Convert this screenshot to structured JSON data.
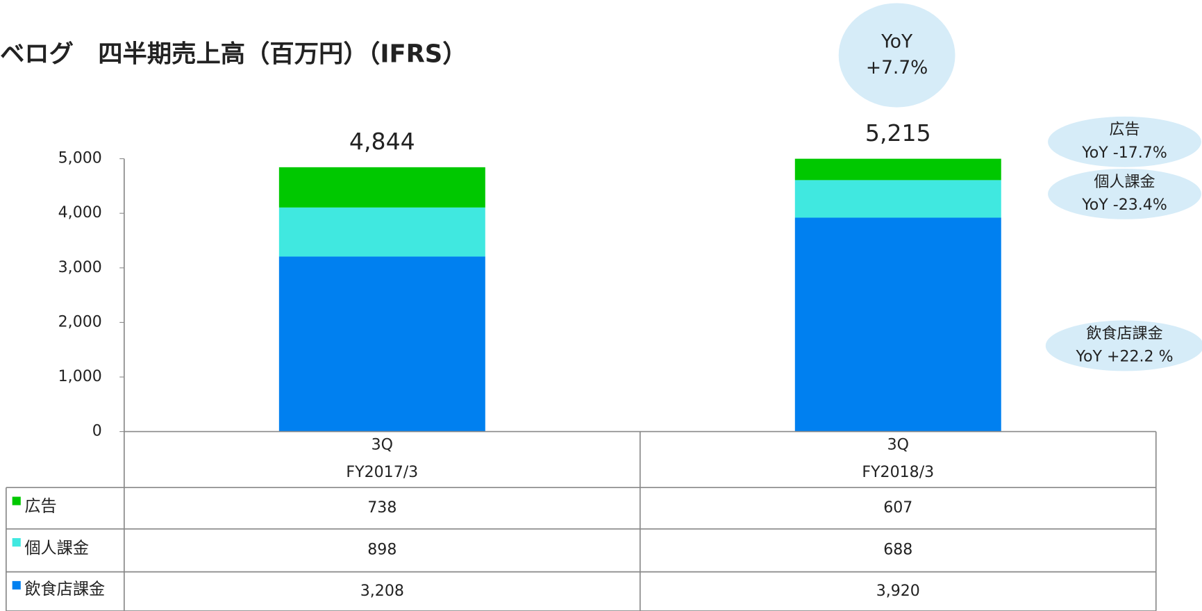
{
  "chart_data": {
    "type": "stacked_bar",
    "title": "ベログ　四半期売上高（百万円）（IFRS）",
    "categories": [
      [
        "3Q",
        "FY2017/3"
      ],
      [
        "3Q",
        "FY2018/3"
      ]
    ],
    "series": [
      {
        "name": "飲食店課金",
        "color": "#0080f0",
        "values": [
          3208,
          3920
        ],
        "value_labels": [
          "3,208",
          "3,920"
        ]
      },
      {
        "name": "個人課金",
        "color": "#40e8e0",
        "values": [
          898,
          688
        ]
      },
      {
        "name": "広告",
        "color": "#00c800",
        "values": [
          738,
          607
        ]
      }
    ],
    "totals": [
      4844,
      5215
    ],
    "total_labels": [
      "4,844",
      "5,215"
    ],
    "ylim": [
      0,
      5000
    ],
    "yticks": [
      0,
      {
        "value": 1000,
        "label": "1,000"
      },
      {
        "value": 2000,
        "label": "2,000"
      },
      {
        "value": 3000,
        "label": "3,000"
      },
      {
        "value": 4000,
        "label": "4,000"
      },
      {
        "value": 5000,
        "label": "5,000"
      }
    ],
    "annotations": [
      {
        "lines": [
          "YoY",
          "+7.7%"
        ]
      },
      {
        "lines": [
          "広告",
          "YoY -17.7%"
        ]
      },
      {
        "lines": [
          "個人課金",
          "YoY -23.4%"
        ]
      },
      {
        "lines": [
          "飲食店課金",
          "YoY +22.2 %"
        ]
      }
    ]
  }
}
